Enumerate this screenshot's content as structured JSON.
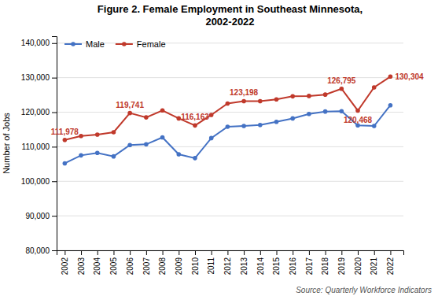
{
  "chart_data": {
    "type": "line",
    "title": "Figure 2. Female Employment in Southeast Minnesota,\n2002-2022",
    "ylabel": "Number of Jobs",
    "source": "Source: Quarterly Workforce Indicators",
    "x": [
      2002,
      2003,
      2004,
      2005,
      2006,
      2007,
      2008,
      2009,
      2010,
      2011,
      2012,
      2013,
      2014,
      2015,
      2016,
      2017,
      2018,
      2019,
      2020,
      2021,
      2022
    ],
    "series": [
      {
        "name": "Male",
        "color": "#4472C4",
        "marker": "circle",
        "values": [
          105200,
          107500,
          108200,
          107200,
          110500,
          110700,
          112700,
          107800,
          106700,
          112500,
          115800,
          116000,
          116300,
          117200,
          118200,
          119500,
          120200,
          120300,
          116200,
          116000,
          122000
        ]
      },
      {
        "name": "Female",
        "color": "#C0392B",
        "marker": "circle",
        "values": [
          111978,
          113100,
          113500,
          114200,
          119741,
          118500,
          120500,
          118200,
          116163,
          119200,
          122500,
          123198,
          123200,
          123700,
          124600,
          124700,
          125100,
          126795,
          120468,
          127200,
          130304
        ]
      }
    ],
    "xlim": [
      2001.5,
      2022.8
    ],
    "xticks": [
      2002,
      2003,
      2004,
      2005,
      2006,
      2007,
      2008,
      2009,
      2010,
      2011,
      2012,
      2013,
      2014,
      2015,
      2016,
      2017,
      2018,
      2019,
      2020,
      2021,
      2022
    ],
    "ylim": [
      80000,
      142000
    ],
    "yticks": [
      {
        "value": 80000,
        "label": "80,000"
      },
      {
        "value": 90000,
        "label": "90,000"
      },
      {
        "value": 100000,
        "label": "100,000"
      },
      {
        "value": 110000,
        "label": "110,000"
      },
      {
        "value": 120000,
        "label": "120,000"
      },
      {
        "value": 130000,
        "label": "130,000"
      },
      {
        "value": 140000,
        "label": "140,000"
      }
    ],
    "grid": true,
    "legend": "upper left",
    "annotations": [
      {
        "x": 2002,
        "y": 111978,
        "label": "111,978",
        "color": "#C0392B"
      },
      {
        "x": 2006,
        "y": 119741,
        "label": "119,741",
        "color": "#C0392B"
      },
      {
        "x": 2010,
        "y": 116163,
        "label": "116,163",
        "color": "#C0392B"
      },
      {
        "x": 2013,
        "y": 123198,
        "label": "123,198",
        "color": "#C0392B"
      },
      {
        "x": 2019,
        "y": 126795,
        "label": "126,795",
        "color": "#C0392B"
      },
      {
        "x": 2020,
        "y": 120468,
        "label": "120,468",
        "color": "#C0392B"
      },
      {
        "x": 2022,
        "y": 130304,
        "label": "130,304",
        "color": "#C0392B"
      }
    ]
  }
}
